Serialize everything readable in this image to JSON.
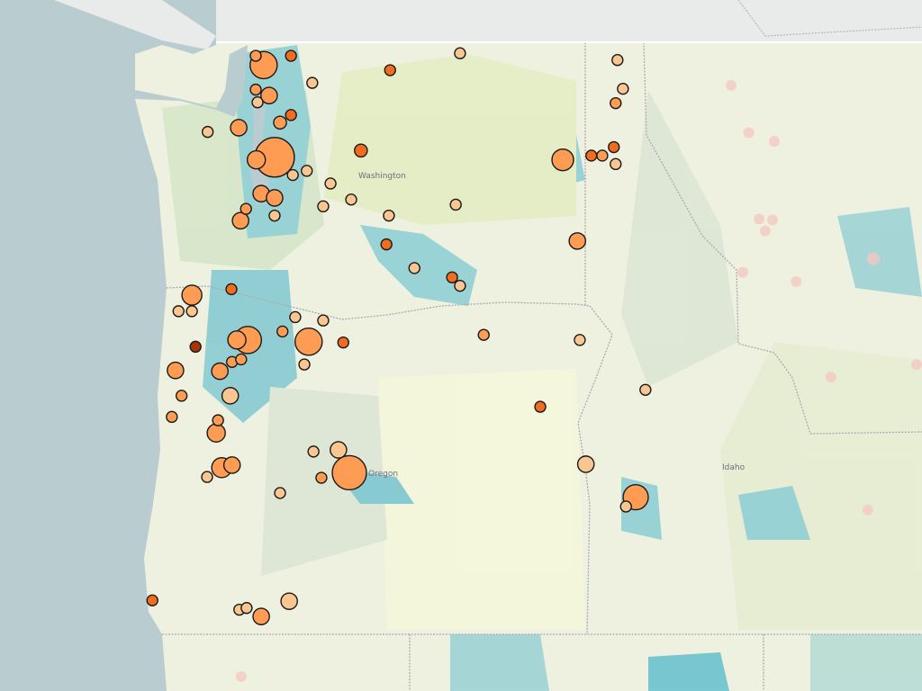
{
  "map": {
    "labels": {
      "washington": "Washington",
      "oregon": "Oregon",
      "idaho": "Idaho"
    },
    "colors": {
      "land": "#eef1df",
      "ocean": "#b9ccd0",
      "canada": "#e9eaea",
      "choropleth_low": "#f3f6d4",
      "choropleth_mid": "#cfe3c8",
      "choropleth_high": "#6cc3cf",
      "marker_levels": [
        "#f9c590",
        "#fd9c52",
        "#f26c20",
        "#a63603"
      ],
      "marker_outline": "#1a1a1a",
      "faded_marker": "#f6c6c0"
    },
    "markers": [
      {
        "lon": -122.33,
        "lat": 48.73,
        "value": 6.3,
        "level": 2
      },
      {
        "lon": -122.46,
        "lat": 48.84,
        "value": 1,
        "level": 2
      },
      {
        "lon": -121.88,
        "lat": 48.84,
        "value": 1,
        "level": 3
      },
      {
        "lon": -121.53,
        "lat": 48.52,
        "value": 1,
        "level": 1
      },
      {
        "lon": -122.46,
        "lat": 48.44,
        "value": 1,
        "level": 2
      },
      {
        "lon": -122.24,
        "lat": 48.37,
        "value": 2.3,
        "level": 2
      },
      {
        "lon": -122.43,
        "lat": 48.29,
        "value": 1,
        "level": 1
      },
      {
        "lon": -122.74,
        "lat": 47.99,
        "value": 2.3,
        "level": 2
      },
      {
        "lon": -123.25,
        "lat": 47.94,
        "value": 1,
        "level": 1
      },
      {
        "lon": -121.88,
        "lat": 48.14,
        "value": 1,
        "level": 3
      },
      {
        "lon": -122.06,
        "lat": 48.05,
        "value": 1.4,
        "level": 2
      },
      {
        "lon": -122.15,
        "lat": 47.64,
        "value": 13.4,
        "level": 2
      },
      {
        "lon": -122.45,
        "lat": 47.61,
        "value": 2.8,
        "level": 2
      },
      {
        "lon": -121.85,
        "lat": 47.43,
        "value": 1,
        "level": 1
      },
      {
        "lon": -121.62,
        "lat": 47.48,
        "value": 1,
        "level": 1
      },
      {
        "lon": -122.37,
        "lat": 47.21,
        "value": 2.3,
        "level": 2
      },
      {
        "lon": -122.15,
        "lat": 47.16,
        "value": 2.3,
        "level": 2
      },
      {
        "lon": -122.62,
        "lat": 47.03,
        "value": 1,
        "level": 2
      },
      {
        "lon": -122.71,
        "lat": 46.89,
        "value": 2.3,
        "level": 2
      },
      {
        "lon": -122.15,
        "lat": 46.95,
        "value": 1,
        "level": 1
      },
      {
        "lon": -121.35,
        "lat": 47.06,
        "value": 1,
        "level": 1
      },
      {
        "lon": -121.23,
        "lat": 47.33,
        "value": 1,
        "level": 1
      },
      {
        "lon": -120.89,
        "lat": 47.14,
        "value": 1,
        "level": 1
      },
      {
        "lon": -120.73,
        "lat": 47.72,
        "value": 1.4,
        "level": 3
      },
      {
        "lon": -120.25,
        "lat": 48.67,
        "value": 1,
        "level": 3
      },
      {
        "lon": -119.1,
        "lat": 48.87,
        "value": 1,
        "level": 1
      },
      {
        "lon": -119.17,
        "lat": 47.08,
        "value": 1,
        "level": 1
      },
      {
        "lon": -120.27,
        "lat": 46.95,
        "value": 1,
        "level": 1
      },
      {
        "lon": -120.31,
        "lat": 46.61,
        "value": 1,
        "level": 3
      },
      {
        "lon": -119.85,
        "lat": 46.33,
        "value": 1,
        "level": 1
      },
      {
        "lon": -119.23,
        "lat": 46.22,
        "value": 1,
        "level": 3
      },
      {
        "lon": -119.1,
        "lat": 46.12,
        "value": 1,
        "level": 1
      },
      {
        "lon": -116.51,
        "lat": 48.79,
        "value": 1,
        "level": 1
      },
      {
        "lon": -116.42,
        "lat": 48.45,
        "value": 1,
        "level": 1
      },
      {
        "lon": -116.54,
        "lat": 48.28,
        "value": 1,
        "level": 2
      },
      {
        "lon": -117.41,
        "lat": 47.61,
        "value": 4,
        "level": 2
      },
      {
        "lon": -116.94,
        "lat": 47.66,
        "value": 1,
        "level": 3
      },
      {
        "lon": -116.76,
        "lat": 47.66,
        "value": 1,
        "level": 2
      },
      {
        "lon": -116.57,
        "lat": 47.76,
        "value": 1,
        "level": 3
      },
      {
        "lon": -116.54,
        "lat": 47.56,
        "value": 1,
        "level": 1
      },
      {
        "lon": -117.17,
        "lat": 46.65,
        "value": 2.3,
        "level": 2
      },
      {
        "lon": -123.51,
        "lat": 46.01,
        "value": 3.4,
        "level": 2
      },
      {
        "lon": -122.86,
        "lat": 46.08,
        "value": 1,
        "level": 3
      },
      {
        "lon": -123.73,
        "lat": 45.82,
        "value": 1,
        "level": 1
      },
      {
        "lon": -123.51,
        "lat": 45.82,
        "value": 1,
        "level": 1
      },
      {
        "lon": -122.59,
        "lat": 45.48,
        "value": 6.3,
        "level": 2
      },
      {
        "lon": -122.77,
        "lat": 45.48,
        "value": 2.8,
        "level": 2
      },
      {
        "lon": -122.02,
        "lat": 45.58,
        "value": 1,
        "level": 2
      },
      {
        "lon": -121.81,
        "lat": 45.75,
        "value": 1,
        "level": 1
      },
      {
        "lon": -121.35,
        "lat": 45.71,
        "value": 1,
        "level": 1
      },
      {
        "lon": -121.59,
        "lat": 45.46,
        "value": 6.3,
        "level": 2
      },
      {
        "lon": -121.02,
        "lat": 45.45,
        "value": 1,
        "level": 3
      },
      {
        "lon": -121.66,
        "lat": 45.19,
        "value": 1,
        "level": 1
      },
      {
        "lon": -123.45,
        "lat": 45.4,
        "value": 1,
        "level": 4
      },
      {
        "lon": -123.78,
        "lat": 45.12,
        "value": 2.3,
        "level": 2
      },
      {
        "lon": -123.05,
        "lat": 45.11,
        "value": 2.3,
        "level": 2
      },
      {
        "lon": -122.85,
        "lat": 45.22,
        "value": 1,
        "level": 2
      },
      {
        "lon": -122.7,
        "lat": 45.25,
        "value": 1,
        "level": 2
      },
      {
        "lon": -122.88,
        "lat": 44.82,
        "value": 2.3,
        "level": 1
      },
      {
        "lon": -123.68,
        "lat": 44.82,
        "value": 1,
        "level": 2
      },
      {
        "lon": -123.84,
        "lat": 44.57,
        "value": 1,
        "level": 2
      },
      {
        "lon": -123.08,
        "lat": 44.53,
        "value": 1,
        "level": 2
      },
      {
        "lon": -123.11,
        "lat": 44.38,
        "value": 2.8,
        "level": 2
      },
      {
        "lon": -123.02,
        "lat": 43.97,
        "value": 3.4,
        "level": 2
      },
      {
        "lon": -122.85,
        "lat": 44.0,
        "value": 2.3,
        "level": 2
      },
      {
        "lon": -123.26,
        "lat": 43.86,
        "value": 1,
        "level": 1
      },
      {
        "lon": -121.51,
        "lat": 44.16,
        "value": 1,
        "level": 1
      },
      {
        "lon": -121.1,
        "lat": 44.18,
        "value": 2.3,
        "level": 1
      },
      {
        "lon": -120.92,
        "lat": 43.91,
        "value": 10,
        "level": 2
      },
      {
        "lon": -121.38,
        "lat": 43.85,
        "value": 1,
        "level": 2
      },
      {
        "lon": -122.06,
        "lat": 43.67,
        "value": 1,
        "level": 1
      },
      {
        "lon": -118.71,
        "lat": 45.54,
        "value": 1,
        "level": 2
      },
      {
        "lon": -117.13,
        "lat": 45.48,
        "value": 1,
        "level": 1
      },
      {
        "lon": -117.78,
        "lat": 44.69,
        "value": 1,
        "level": 3
      },
      {
        "lon": -116.05,
        "lat": 44.89,
        "value": 1,
        "level": 1
      },
      {
        "lon": -117.03,
        "lat": 44.01,
        "value": 2.3,
        "level": 1
      },
      {
        "lon": -116.21,
        "lat": 43.62,
        "value": 5.4,
        "level": 2
      },
      {
        "lon": -116.37,
        "lat": 43.51,
        "value": 1,
        "level": 1
      },
      {
        "lon": -124.16,
        "lat": 42.4,
        "value": 1,
        "level": 3
      },
      {
        "lon": -122.73,
        "lat": 42.29,
        "value": 1,
        "level": 1
      },
      {
        "lon": -122.61,
        "lat": 42.31,
        "value": 1,
        "level": 1
      },
      {
        "lon": -122.37,
        "lat": 42.21,
        "value": 2.3,
        "level": 2
      },
      {
        "lon": -121.91,
        "lat": 42.39,
        "value": 2.3,
        "level": 1
      }
    ],
    "faded_markers": [
      {
        "lon": -114.64,
        "lat": 48.49
      },
      {
        "lon": -114.35,
        "lat": 47.93
      },
      {
        "lon": -113.93,
        "lat": 47.83
      },
      {
        "lon": -114.18,
        "lat": 46.91
      },
      {
        "lon": -113.96,
        "lat": 46.9
      },
      {
        "lon": -114.08,
        "lat": 46.77
      },
      {
        "lon": -114.45,
        "lat": 46.28
      },
      {
        "lon": -113.57,
        "lat": 46.17
      },
      {
        "lon": -112.3,
        "lat": 46.44,
        "value": 1.4
      },
      {
        "lon": -113.0,
        "lat": 45.04
      },
      {
        "lon": -111.59,
        "lat": 45.19
      },
      {
        "lon": -112.39,
        "lat": 43.47
      },
      {
        "lon": -122.7,
        "lat": 41.5
      }
    ]
  }
}
